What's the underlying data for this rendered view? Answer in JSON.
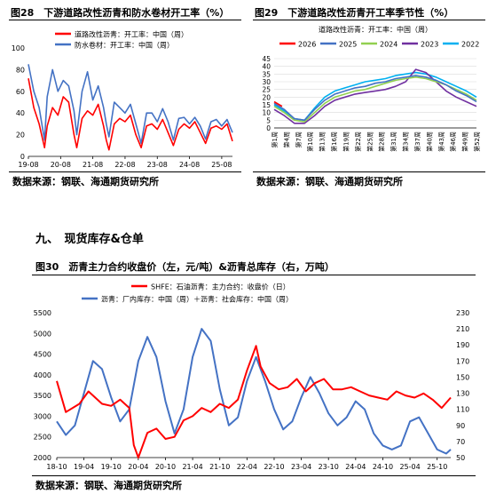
{
  "fig28": {
    "title": "图28　下游道路改性沥青和防水卷材开工率（%）",
    "source": "数据来源：钢联、海通期货研究所",
    "chart_data": {
      "type": "line",
      "title": "下游道路改性沥青和防水卷材开工率（%）",
      "ylim": [
        0,
        100
      ],
      "y_ticks": [
        "0",
        "20",
        "40",
        "60",
        "80",
        "100"
      ],
      "x_ticks": [
        "19-08",
        "20-08",
        "21-08",
        "22-08",
        "23-08",
        "24-08",
        "25-08"
      ],
      "x_range": [
        "2019-08",
        "2025-12"
      ],
      "legend_position": "top",
      "series": [
        {
          "name": "道路改性沥青：开工率：中国（周）",
          "color": "#ff0000",
          "x": [
            "2019-08",
            "2019-10",
            "2019-12",
            "2020-02",
            "2020-03",
            "2020-05",
            "2020-07",
            "2020-09",
            "2020-11",
            "2021-01",
            "2021-02",
            "2021-04",
            "2021-06",
            "2021-08",
            "2021-10",
            "2021-12",
            "2022-01",
            "2022-02",
            "2022-04",
            "2022-06",
            "2022-08",
            "2022-10",
            "2022-12",
            "2023-02",
            "2023-04",
            "2023-06",
            "2023-08",
            "2023-10",
            "2023-12",
            "2024-02",
            "2024-04",
            "2024-06",
            "2024-08",
            "2024-10",
            "2024-12",
            "2025-02",
            "2025-04",
            "2025-06",
            "2025-08",
            "2025-10",
            "2025-12"
          ],
          "values": [
            72,
            45,
            30,
            8,
            28,
            45,
            38,
            55,
            50,
            20,
            8,
            35,
            42,
            38,
            48,
            28,
            15,
            6,
            30,
            35,
            32,
            38,
            20,
            8,
            28,
            30,
            25,
            34,
            22,
            10,
            25,
            30,
            26,
            32,
            22,
            12,
            26,
            28,
            25,
            30,
            14
          ]
        },
        {
          "name": "防水卷材：开工率：中国（周）",
          "color": "#4472c4",
          "x": [
            "2019-08",
            "2019-10",
            "2019-12",
            "2020-02",
            "2020-03",
            "2020-05",
            "2020-07",
            "2020-09",
            "2020-11",
            "2021-01",
            "2021-02",
            "2021-04",
            "2021-06",
            "2021-08",
            "2021-10",
            "2021-12",
            "2022-01",
            "2022-02",
            "2022-04",
            "2022-06",
            "2022-08",
            "2022-10",
            "2022-12",
            "2023-02",
            "2023-04",
            "2023-06",
            "2023-08",
            "2023-10",
            "2023-12",
            "2024-02",
            "2024-04",
            "2024-06",
            "2024-08",
            "2024-10",
            "2024-12",
            "2025-02",
            "2025-04",
            "2025-06",
            "2025-08",
            "2025-10",
            "2025-12"
          ],
          "values": [
            85,
            60,
            45,
            15,
            55,
            80,
            60,
            70,
            65,
            42,
            20,
            60,
            78,
            52,
            65,
            45,
            30,
            18,
            50,
            45,
            40,
            48,
            30,
            12,
            40,
            40,
            32,
            44,
            32,
            15,
            35,
            36,
            30,
            36,
            28,
            16,
            32,
            34,
            28,
            34,
            22
          ]
        }
      ]
    }
  },
  "fig29": {
    "title": "图29　下游道路改性沥青开工率季节性（%）",
    "source": "数据来源：钢联、海通期货研究所",
    "chart_data": {
      "type": "line",
      "title": "下游道路改性沥青开工率季节性（%）",
      "series_title": "道路改性沥青：开工率：中国（周）",
      "ylim": [
        0,
        45
      ],
      "y_ticks": [
        "0",
        "5",
        "10",
        "15",
        "20",
        "25",
        "30",
        "35",
        "40",
        "45"
      ],
      "x_ticks": [
        "第1周",
        "第4周",
        "第7周",
        "第10周",
        "第13周",
        "第16周",
        "第19周",
        "第22周",
        "第25周",
        "第28周",
        "第31周",
        "第34周",
        "第37周",
        "第40周",
        "第43周",
        "第46周",
        "第49周",
        "第52周"
      ],
      "legend_position": "top",
      "series": [
        {
          "name": "2026",
          "color": "#ff0000",
          "values": [
            17,
            14
          ]
        },
        {
          "name": "2025",
          "color": "#4472c4",
          "values": [
            16,
            12,
            6,
            5,
            12,
            18,
            22,
            24,
            26,
            27,
            29,
            30,
            32,
            33,
            34,
            33,
            31,
            28,
            24,
            21,
            17
          ]
        },
        {
          "name": "2024",
          "color": "#92d050",
          "values": [
            14,
            10,
            5,
            4,
            10,
            16,
            20,
            22,
            24,
            25,
            27,
            29,
            31,
            32,
            33,
            32,
            30,
            28,
            25,
            22,
            18
          ]
        },
        {
          "name": "2023",
          "color": "#7030a0",
          "values": [
            12,
            8,
            3,
            3,
            8,
            14,
            18,
            20,
            22,
            23,
            24,
            25,
            27,
            30,
            38,
            36,
            30,
            24,
            20,
            17,
            14
          ]
        },
        {
          "name": "2022",
          "color": "#00b0f0",
          "values": [
            15,
            11,
            6,
            5,
            13,
            20,
            24,
            26,
            28,
            30,
            31,
            32,
            34,
            35,
            36,
            35,
            33,
            30,
            27,
            24,
            20
          ]
        }
      ]
    }
  },
  "section": {
    "title": "九、　现货库存&仓单"
  },
  "fig30": {
    "title": "图30　沥青主力合约收盘价（左，元/吨）&沥青总库存（右，万吨）",
    "source": "数据来源：钢联、海通期货研究所",
    "chart_data": {
      "type": "line",
      "title": "沥青主力合约收盘价（左，元/吨）&沥青总库存（右，万吨）",
      "ylim_left": [
        2000,
        5500
      ],
      "ylim_right": [
        50,
        230
      ],
      "y_ticks_left": [
        "2000",
        "2500",
        "3000",
        "3500",
        "4000",
        "4500",
        "5000",
        "5500"
      ],
      "y_ticks_right": [
        "50",
        "70",
        "90",
        "110",
        "130",
        "150",
        "170",
        "190",
        "210",
        "230"
      ],
      "x_ticks": [
        "18-10",
        "19-04",
        "19-10",
        "20-04",
        "20-10",
        "21-04",
        "21-10",
        "22-04",
        "22-10",
        "23-04",
        "23-10",
        "24-04",
        "24-10",
        "25-04",
        "25-10"
      ],
      "x_range": [
        "2018-10",
        "2026-01"
      ],
      "legend_position": "top",
      "series": [
        {
          "name": "SHFE：石油沥青：主力合约：收盘价（日）",
          "color": "#ff0000",
          "axis": "left",
          "x": [
            "2018-10",
            "2018-12",
            "2019-03",
            "2019-05",
            "2019-08",
            "2019-10",
            "2019-12",
            "2020-02",
            "2020-03",
            "2020-04",
            "2020-06",
            "2020-08",
            "2020-10",
            "2020-12",
            "2021-02",
            "2021-04",
            "2021-06",
            "2021-08",
            "2021-10",
            "2021-12",
            "2022-02",
            "2022-04",
            "2022-06",
            "2022-07",
            "2022-09",
            "2022-11",
            "2023-01",
            "2023-03",
            "2023-05",
            "2023-07",
            "2023-09",
            "2023-11",
            "2024-01",
            "2024-03",
            "2024-05",
            "2024-07",
            "2024-09",
            "2024-11",
            "2025-01",
            "2025-03",
            "2025-05",
            "2025-07",
            "2025-09",
            "2025-11",
            "2026-01"
          ],
          "values": [
            3850,
            3100,
            3300,
            3600,
            3300,
            3250,
            3400,
            3200,
            2300,
            2000,
            2600,
            2700,
            2450,
            2500,
            2900,
            3000,
            3200,
            3100,
            3300,
            3200,
            3400,
            4100,
            4700,
            4200,
            3800,
            3650,
            3700,
            3900,
            3600,
            3800,
            3900,
            3650,
            3650,
            3700,
            3600,
            3500,
            3450,
            3400,
            3600,
            3500,
            3450,
            3550,
            3400,
            3200,
            3450
          ]
        },
        {
          "name": "沥青：厂内库存：中国（周）＋沥青：社会库存：中国（周）",
          "color": "#4472c4",
          "axis": "right",
          "x": [
            "2018-10",
            "2018-12",
            "2019-02",
            "2019-04",
            "2019-06",
            "2019-08",
            "2019-10",
            "2019-12",
            "2020-02",
            "2020-04",
            "2020-06",
            "2020-08",
            "2020-10",
            "2020-12",
            "2021-02",
            "2021-04",
            "2021-06",
            "2021-08",
            "2021-10",
            "2021-12",
            "2022-02",
            "2022-04",
            "2022-06",
            "2022-08",
            "2022-10",
            "2022-12",
            "2023-02",
            "2023-04",
            "2023-06",
            "2023-08",
            "2023-10",
            "2023-12",
            "2024-02",
            "2024-04",
            "2024-06",
            "2024-08",
            "2024-10",
            "2024-12",
            "2025-02",
            "2025-04",
            "2025-06",
            "2025-08",
            "2025-10",
            "2025-12",
            "2026-01"
          ],
          "values": [
            95,
            78,
            90,
            130,
            170,
            160,
            125,
            95,
            110,
            170,
            200,
            175,
            120,
            80,
            110,
            175,
            210,
            195,
            135,
            90,
            100,
            145,
            175,
            145,
            110,
            85,
            95,
            125,
            150,
            130,
            105,
            90,
            100,
            120,
            110,
            80,
            65,
            60,
            65,
            95,
            100,
            80,
            60,
            55,
            60
          ]
        }
      ]
    }
  }
}
